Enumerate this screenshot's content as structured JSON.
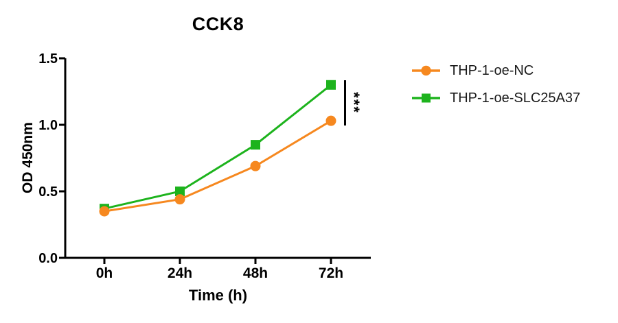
{
  "figure": {
    "background": "#ffffff",
    "axis_color": "#000000"
  },
  "chart_data": {
    "type": "line",
    "title": "CCK8",
    "xlabel": "Time (h)",
    "ylabel": "OD 450nm",
    "categories": [
      "0h",
      "24h",
      "48h",
      "72h"
    ],
    "series": [
      {
        "name": "THP-1-oe-NC",
        "marker": "circle",
        "color": "#F6881F",
        "values": [
          0.35,
          0.44,
          0.69,
          1.03
        ]
      },
      {
        "name": "THP-1-oe-SLC25A37",
        "marker": "square",
        "color": "#1DB31D",
        "values": [
          0.37,
          0.5,
          0.85,
          1.3
        ]
      }
    ],
    "ylim": [
      0.0,
      1.5
    ],
    "y_ticks": [
      "0.0",
      "0.5",
      "1.0",
      "1.5"
    ],
    "grid": false,
    "legend_position": "right",
    "annotation": {
      "text": "***",
      "location": "right of 72h, bracket between the two series endpoints"
    }
  }
}
